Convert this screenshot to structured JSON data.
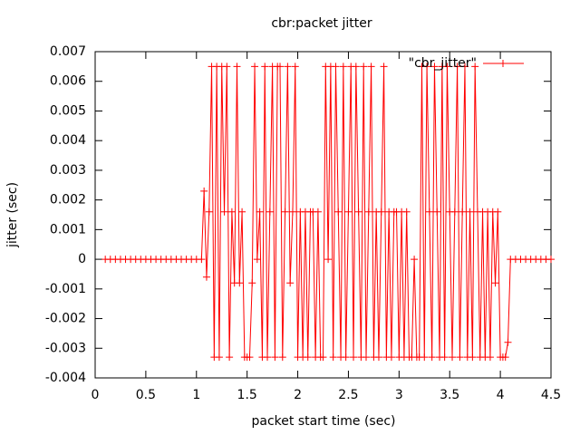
{
  "chart_data": {
    "type": "line",
    "title": "cbr:packet jitter",
    "x_label": "packet start time (sec)",
    "y_label": "jitter (sec)",
    "xlim": [
      0,
      4.5
    ],
    "xticks": [
      0,
      0.5,
      1,
      1.5,
      2,
      2.5,
      3,
      3.5,
      4,
      4.5
    ],
    "ylim": [
      -0.004,
      0.007
    ],
    "yticks": [
      -0.004,
      -0.003,
      -0.002,
      -0.001,
      0,
      0.001,
      0.002,
      0.003,
      0.004,
      0.005,
      0.006,
      0.007
    ],
    "legend": "top-right",
    "grid": false,
    "series": [
      {
        "name": "\"cbr_jitter\"",
        "color": "#ff0000",
        "x": [
          0.1,
          0.15,
          0.2,
          0.25,
          0.3,
          0.35,
          0.4,
          0.45,
          0.5,
          0.55,
          0.6,
          0.65,
          0.7,
          0.75,
          0.8,
          0.85,
          0.9,
          0.95,
          1.0,
          1.05,
          1.075,
          1.1,
          1.125,
          1.15,
          1.175,
          1.2,
          1.225,
          1.25,
          1.275,
          1.3,
          1.325,
          1.35,
          1.375,
          1.4,
          1.425,
          1.45,
          1.475,
          1.5,
          1.525,
          1.55,
          1.575,
          1.6,
          1.625,
          1.65,
          1.675,
          1.7,
          1.725,
          1.75,
          1.775,
          1.8,
          1.825,
          1.85,
          1.875,
          1.9,
          1.925,
          1.95,
          1.975,
          2.0,
          2.025,
          2.05,
          2.075,
          2.1,
          2.125,
          2.15,
          2.175,
          2.2,
          2.225,
          2.25,
          2.275,
          2.3,
          2.325,
          2.35,
          2.375,
          2.4,
          2.425,
          2.45,
          2.475,
          2.5,
          2.525,
          2.55,
          2.575,
          2.6,
          2.625,
          2.65,
          2.675,
          2.7,
          2.725,
          2.75,
          2.775,
          2.8,
          2.825,
          2.85,
          2.875,
          2.9,
          2.925,
          2.95,
          2.975,
          3.0,
          3.025,
          3.05,
          3.075,
          3.1,
          3.125,
          3.15,
          3.175,
          3.2,
          3.225,
          3.25,
          3.275,
          3.3,
          3.325,
          3.35,
          3.375,
          3.4,
          3.425,
          3.45,
          3.475,
          3.5,
          3.525,
          3.55,
          3.575,
          3.6,
          3.625,
          3.65,
          3.675,
          3.7,
          3.725,
          3.75,
          3.775,
          3.8,
          3.825,
          3.85,
          3.875,
          3.9,
          3.925,
          3.95,
          3.975,
          4.0,
          4.025,
          4.05,
          4.075,
          4.1,
          4.15,
          4.2,
          4.25,
          4.3,
          4.35,
          4.4,
          4.45,
          4.5
        ],
        "values": [
          0,
          0,
          0,
          0,
          0,
          0,
          0,
          0,
          0,
          0,
          0,
          0,
          0,
          0,
          0,
          0,
          0,
          0,
          0,
          0,
          0.0023,
          -0.0006,
          0.0016,
          0.0065,
          -0.0033,
          0.0065,
          -0.0033,
          0.0065,
          0.0016,
          0.0065,
          -0.0033,
          0.0016,
          -0.0008,
          0.0065,
          -0.0008,
          0.0016,
          -0.0033,
          -0.0033,
          -0.0033,
          -0.0008,
          0.0065,
          0,
          0.0016,
          -0.0033,
          0.0065,
          -0.0033,
          0.0016,
          0.0065,
          -0.0033,
          0.0065,
          0.0065,
          -0.0033,
          0.0016,
          0.0065,
          -0.0008,
          0.0016,
          0.0065,
          -0.0033,
          0.0016,
          -0.0033,
          0.0016,
          -0.0033,
          0.0016,
          0.0016,
          -0.0033,
          0.0016,
          -0.0033,
          -0.0033,
          0.0065,
          0,
          0.0065,
          -0.0033,
          0.0065,
          0.0016,
          -0.0033,
          0.0065,
          -0.0033,
          0.0016,
          0.0065,
          -0.0033,
          0.0065,
          0.0016,
          -0.0033,
          0.0065,
          -0.0033,
          0.0016,
          0.0065,
          -0.0033,
          0.0016,
          -0.0033,
          0.0016,
          0.0065,
          -0.0033,
          0.0016,
          -0.0033,
          0.0016,
          0.0016,
          -0.0033,
          0.0016,
          -0.0033,
          0.0016,
          -0.0033,
          -0.0033,
          0,
          -0.0033,
          -0.0033,
          0.0065,
          -0.0033,
          0.0065,
          0.0016,
          -0.0033,
          0.0065,
          0.0016,
          -0.0033,
          0.0065,
          -0.0033,
          0.0065,
          0.0016,
          -0.0033,
          0.0016,
          0.0065,
          -0.0033,
          0.0016,
          0.0065,
          -0.0033,
          0.0016,
          -0.0033,
          0.0065,
          0.0016,
          -0.0033,
          0.0016,
          -0.0033,
          0.0016,
          -0.0033,
          0.0016,
          -0.0008,
          0.0016,
          -0.0033,
          -0.0033,
          -0.0033,
          -0.0028,
          0,
          0,
          0,
          0,
          0,
          0,
          0,
          0,
          0
        ]
      }
    ]
  }
}
